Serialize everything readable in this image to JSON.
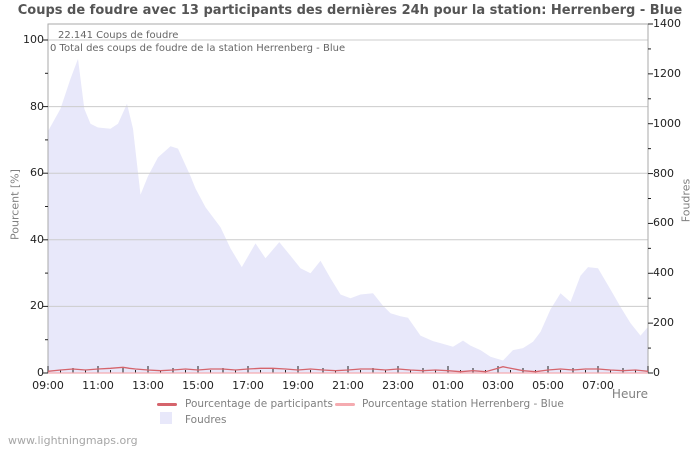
{
  "title": "Coups de foudre avec 13 participants des dernières 24h pour la station: Herrenberg - Blue",
  "annotations": {
    "line1": "22.141  Coups de foudre",
    "line2": "0 Total des coups de foudre de la station Herrenberg - Blue"
  },
  "watermark": "www.lightningmaps.org",
  "colors": {
    "grid": "#cccccc",
    "border": "#aaaaaa",
    "tick": "#222222",
    "tick_label": "#222222",
    "title": "#555555",
    "axis_text": "#808080",
    "annotation": "#666666",
    "watermark": "#a6a6a6"
  },
  "chart_data": {
    "type": "area",
    "title": "Coups de foudre avec 13 participants des dernières 24h pour la station: Herrenberg - Blue",
    "x_axis_label": "Heure",
    "x_ticks": [
      "09:00",
      "11:00",
      "13:00",
      "15:00",
      "17:00",
      "19:00",
      "21:00",
      "23:00",
      "01:00",
      "03:00",
      "05:00",
      "07:00"
    ],
    "x_range_hours": [
      0,
      24
    ],
    "left_axis": {
      "label": "Pourcent  [%]",
      "ticks": [
        0,
        20,
        40,
        60,
        80,
        100
      ],
      "lim": [
        0,
        100
      ]
    },
    "right_axis": {
      "label": "Foudres",
      "ticks": [
        0,
        200,
        400,
        600,
        800,
        1000,
        1200,
        1400
      ],
      "lim": [
        0,
        1400
      ]
    },
    "grid": "horizontal",
    "legend_position": "bottom-center",
    "series": [
      {
        "name": "Foudres",
        "type": "area",
        "axis": "right",
        "color": "#e8e8fa",
        "points": [
          [
            0,
            970
          ],
          [
            0.5,
            1060
          ],
          [
            0.9,
            1180
          ],
          [
            1.2,
            1260
          ],
          [
            1.45,
            1060
          ],
          [
            1.7,
            1000
          ],
          [
            2,
            985
          ],
          [
            2.5,
            980
          ],
          [
            2.8,
            1000
          ],
          [
            3.16,
            1080
          ],
          [
            3.4,
            980
          ],
          [
            3.7,
            715
          ],
          [
            4,
            790
          ],
          [
            4.4,
            865
          ],
          [
            4.9,
            910
          ],
          [
            5.2,
            900
          ],
          [
            5.7,
            790
          ],
          [
            5.9,
            740
          ],
          [
            6.3,
            665
          ],
          [
            6.9,
            585
          ],
          [
            7.3,
            500
          ],
          [
            7.75,
            425
          ],
          [
            8.3,
            520
          ],
          [
            8.7,
            460
          ],
          [
            9.25,
            525
          ],
          [
            9.7,
            470
          ],
          [
            10.1,
            420
          ],
          [
            10.5,
            400
          ],
          [
            10.9,
            450
          ],
          [
            11.3,
            380
          ],
          [
            11.7,
            315
          ],
          [
            12.1,
            300
          ],
          [
            12.5,
            315
          ],
          [
            13,
            320
          ],
          [
            13.4,
            270
          ],
          [
            13.7,
            240
          ],
          [
            14.1,
            228
          ],
          [
            14.4,
            222
          ],
          [
            14.9,
            150
          ],
          [
            15.4,
            128
          ],
          [
            15.7,
            120
          ],
          [
            16.2,
            105
          ],
          [
            16.6,
            130
          ],
          [
            16.9,
            110
          ],
          [
            17.3,
            92
          ],
          [
            17.7,
            65
          ],
          [
            18.2,
            50
          ],
          [
            18.6,
            92
          ],
          [
            19,
            100
          ],
          [
            19.4,
            125
          ],
          [
            19.7,
            165
          ],
          [
            20.1,
            255
          ],
          [
            20.5,
            320
          ],
          [
            20.9,
            285
          ],
          [
            21.3,
            390
          ],
          [
            21.6,
            425
          ],
          [
            22,
            420
          ],
          [
            22.5,
            335
          ],
          [
            22.9,
            265
          ],
          [
            23.3,
            200
          ],
          [
            23.7,
            150
          ],
          [
            24,
            185
          ]
        ]
      },
      {
        "name": "Pourcentage de participants",
        "type": "line",
        "axis": "left",
        "color": "#d5646c",
        "points": [
          [
            0,
            0.5
          ],
          [
            0.5,
            0.9
          ],
          [
            1,
            1.2
          ],
          [
            1.5,
            0.9
          ],
          [
            2,
            1.2
          ],
          [
            2.5,
            1.4
          ],
          [
            3,
            1.7
          ],
          [
            3.25,
            1.4
          ],
          [
            3.5,
            1.2
          ],
          [
            4,
            0.9
          ],
          [
            4.5,
            0.7
          ],
          [
            5,
            0.9
          ],
          [
            5.5,
            1.2
          ],
          [
            6,
            0.9
          ],
          [
            6.5,
            1.2
          ],
          [
            7,
            1.2
          ],
          [
            7.5,
            0.9
          ],
          [
            8,
            1.2
          ],
          [
            8.5,
            1.4
          ],
          [
            9,
            1.4
          ],
          [
            9.5,
            1.2
          ],
          [
            10,
            0.9
          ],
          [
            10.5,
            1.2
          ],
          [
            11,
            0.9
          ],
          [
            11.5,
            0.7
          ],
          [
            12,
            0.9
          ],
          [
            12.5,
            1.2
          ],
          [
            13,
            1.2
          ],
          [
            13.5,
            0.9
          ],
          [
            14,
            1.2
          ],
          [
            14.5,
            0.9
          ],
          [
            15,
            0.7
          ],
          [
            15.5,
            0.9
          ],
          [
            16,
            0.7
          ],
          [
            16.5,
            0.4
          ],
          [
            17,
            0.7
          ],
          [
            17.5,
            0.4
          ],
          [
            18,
            1.4
          ],
          [
            18.2,
            1.9
          ],
          [
            18.5,
            1.4
          ],
          [
            19,
            0.7
          ],
          [
            19.5,
            0.4
          ],
          [
            20,
            0.9
          ],
          [
            20.5,
            1.2
          ],
          [
            21,
            0.9
          ],
          [
            21.5,
            1.2
          ],
          [
            22,
            1.2
          ],
          [
            22.5,
            0.9
          ],
          [
            23,
            0.7
          ],
          [
            23.5,
            0.9
          ],
          [
            24,
            0.5
          ]
        ]
      },
      {
        "name": "Pourcentage station Herrenberg - Blue",
        "type": "line",
        "axis": "left",
        "color": "#f5abb0",
        "points": [
          [
            0,
            0
          ],
          [
            24,
            0
          ]
        ]
      }
    ]
  }
}
